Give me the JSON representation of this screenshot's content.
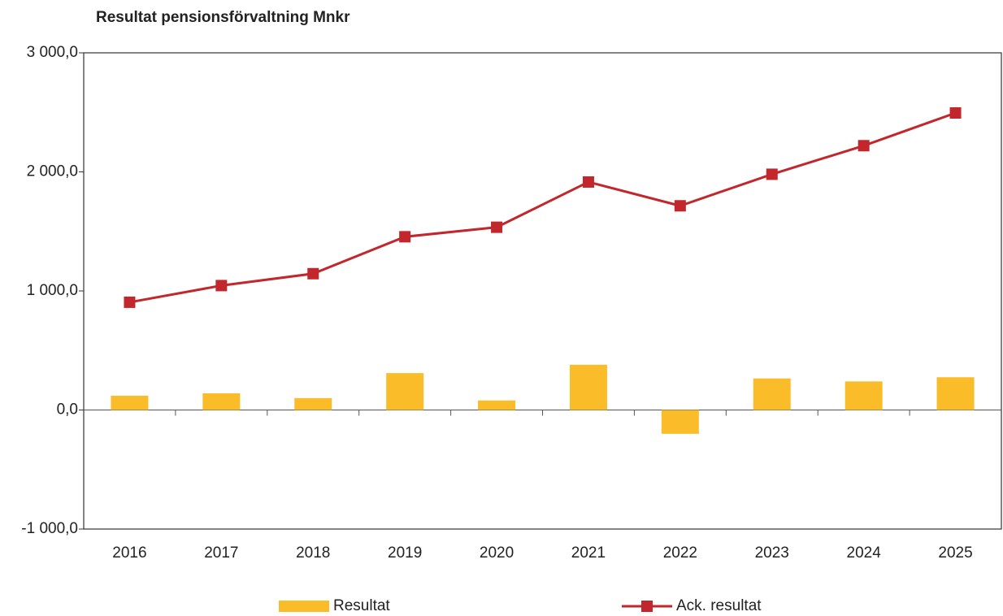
{
  "chart_data": {
    "type": "combo",
    "title": "Resultat pensionsförvaltning Mnkr",
    "categories": [
      "2016",
      "2017",
      "2018",
      "2019",
      "2020",
      "2021",
      "2022",
      "2023",
      "2024",
      "2025"
    ],
    "series": [
      {
        "name": "Resultat",
        "type": "bar",
        "color": "#fbbc2a",
        "values": [
          120,
          140,
          100,
          310,
          80,
          380,
          -200,
          265,
          240,
          275
        ]
      },
      {
        "name": "Ack. resultat",
        "type": "line",
        "color": "#c1272d",
        "values": [
          905,
          1045,
          1145,
          1455,
          1535,
          1915,
          1715,
          1980,
          2220,
          2495
        ]
      }
    ],
    "ylim": [
      -1000,
      3000
    ],
    "yticks": [
      {
        "value": -1000,
        "label": "-1 000,0"
      },
      {
        "value": 0,
        "label": "0,0"
      },
      {
        "value": 1000,
        "label": "1 000,0"
      },
      {
        "value": 2000,
        "label": "2 000,0"
      },
      {
        "value": 3000,
        "label": "3 000,0"
      }
    ],
    "grid": false,
    "legend": "bottom"
  }
}
